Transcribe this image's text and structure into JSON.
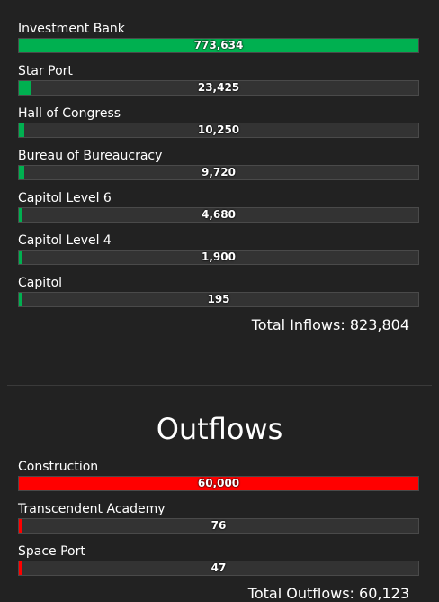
{
  "colors": {
    "inflow": "#00b050",
    "outflow": "#ff0000",
    "track": "#333333"
  },
  "inflows": {
    "items": [
      {
        "label": "Investment Bank",
        "value": "773,634",
        "fraction": 1.0
      },
      {
        "label": "Star Port",
        "value": "23,425",
        "fraction": 0.0303
      },
      {
        "label": "Hall of Congress",
        "value": "10,250",
        "fraction": 0.0133
      },
      {
        "label": "Bureau of Bureaucracy",
        "value": "9,720",
        "fraction": 0.0126
      },
      {
        "label": "Capitol Level 6",
        "value": "4,680",
        "fraction": 0.0061
      },
      {
        "label": "Capitol Level 4",
        "value": "1,900",
        "fraction": 0.0025
      },
      {
        "label": "Capitol",
        "value": "195",
        "fraction": 0.0003
      }
    ],
    "total": "Total Inflows: 823,804"
  },
  "outflows": {
    "title": "Outflows",
    "items": [
      {
        "label": "Construction",
        "value": "60,000",
        "fraction": 1.0
      },
      {
        "label": "Transcendent Academy",
        "value": "76",
        "fraction": 0.0013
      },
      {
        "label": "Space Port",
        "value": "47",
        "fraction": 0.0008
      }
    ],
    "total": "Total Outflows: 60,123"
  }
}
